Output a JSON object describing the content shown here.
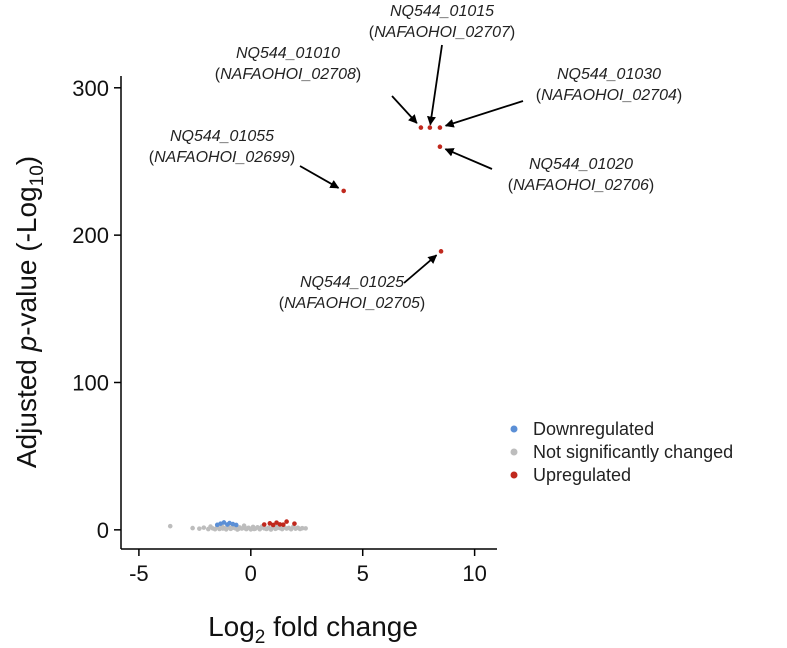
{
  "chart_data": {
    "type": "scatter",
    "title": "",
    "xlabel_base": "Log",
    "xlabel_sub": "2",
    "xlabel_rest": " fold change",
    "ylabel_pre": "Adjusted ",
    "ylabel_italic": "p",
    "ylabel_mid": "-value (-Log",
    "ylabel_sub": "10",
    "ylabel_post": ")",
    "xlim": [
      -5.8,
      11.0
    ],
    "ylim": [
      -13,
      308
    ],
    "x_ticks": [
      {
        "value": -5,
        "label": "-5"
      },
      {
        "value": 0,
        "label": "0"
      },
      {
        "value": 5,
        "label": "5"
      },
      {
        "value": 10,
        "label": "10"
      }
    ],
    "y_ticks": [
      {
        "value": 0,
        "label": "0"
      },
      {
        "value": 100,
        "label": "100"
      },
      {
        "value": 200,
        "label": "200"
      },
      {
        "value": 300,
        "label": "300"
      }
    ],
    "colors": {
      "Downregulated": "#5b8fd6",
      "Not significantly changed": "#bdbdbd",
      "Upregulated": "#c0281d"
    },
    "legend": {
      "position": "right",
      "items": [
        "Downregulated",
        "Not significantly changed",
        "Upregulated"
      ]
    },
    "series": [
      {
        "name": "Not significantly changed",
        "points": [
          [
            -3.6,
            2.5
          ],
          [
            -2.6,
            1.2
          ],
          [
            -2.3,
            0.8
          ],
          [
            -2.1,
            1.5
          ],
          [
            -1.9,
            0.5
          ],
          [
            -1.8,
            2.2
          ],
          [
            -1.7,
            1.0
          ],
          [
            -1.6,
            0.4
          ],
          [
            -1.5,
            1.8
          ],
          [
            -1.4,
            0.6
          ],
          [
            -1.3,
            2.6
          ],
          [
            -1.2,
            1.3
          ],
          [
            -1.1,
            0.3
          ],
          [
            -1.0,
            1.9
          ],
          [
            -0.9,
            0.7
          ],
          [
            -0.8,
            2.4
          ],
          [
            -0.7,
            1.1
          ],
          [
            -0.6,
            0.2
          ],
          [
            -0.5,
            1.6
          ],
          [
            -0.4,
            0.9
          ],
          [
            -0.3,
            2.8
          ],
          [
            -0.2,
            0.5
          ],
          [
            -0.1,
            1.4
          ],
          [
            0.0,
            0.3
          ],
          [
            0.1,
            2.0
          ],
          [
            0.2,
            0.8
          ],
          [
            0.3,
            1.7
          ],
          [
            0.4,
            0.4
          ],
          [
            0.5,
            2.3
          ],
          [
            0.6,
            1.0
          ],
          [
            0.7,
            0.6
          ],
          [
            0.8,
            1.5
          ],
          [
            0.9,
            0.2
          ],
          [
            1.0,
            1.9
          ],
          [
            1.1,
            0.7
          ],
          [
            1.2,
            2.5
          ],
          [
            1.3,
            1.2
          ],
          [
            1.4,
            0.5
          ],
          [
            1.5,
            1.6
          ],
          [
            1.6,
            0.9
          ],
          [
            1.7,
            1.3
          ],
          [
            1.8,
            0.4
          ],
          [
            1.9,
            2.1
          ],
          [
            2.0,
            0.8
          ],
          [
            2.1,
            1.4
          ],
          [
            2.2,
            0.6
          ],
          [
            2.3,
            1.1
          ],
          [
            2.45,
            1.0
          ],
          [
            -0.25,
            1.1
          ],
          [
            0.15,
            0.6
          ],
          [
            0.45,
            1.3
          ],
          [
            -0.55,
            0.7
          ],
          [
            0.75,
            1.0
          ],
          [
            -0.85,
            1.2
          ],
          [
            1.15,
            1.1
          ],
          [
            -1.25,
            0.9
          ]
        ]
      },
      {
        "name": "Downregulated",
        "points": [
          [
            -1.35,
            4.2
          ],
          [
            -1.2,
            5.0
          ],
          [
            -1.05,
            3.6
          ],
          [
            -0.95,
            4.6
          ],
          [
            -0.8,
            3.9
          ],
          [
            -0.65,
            3.3
          ],
          [
            -1.5,
            3.4
          ]
        ]
      },
      {
        "name": "Upregulated",
        "points": [
          [
            0.6,
            3.6
          ],
          [
            0.85,
            4.4
          ],
          [
            1.0,
            3.3
          ],
          [
            1.15,
            4.9
          ],
          [
            1.3,
            3.7
          ],
          [
            1.45,
            3.5
          ],
          [
            1.6,
            5.6
          ],
          [
            1.95,
            4.2
          ],
          [
            7.6,
            273
          ],
          [
            8.0,
            273
          ],
          [
            8.45,
            273
          ],
          [
            8.45,
            260
          ],
          [
            4.15,
            230
          ],
          [
            8.5,
            189
          ]
        ]
      }
    ],
    "annotations": [
      {
        "line1": "NQ544_01015",
        "line2": "(NAFAOHOI_02707)",
        "target": [
          8.0,
          273
        ]
      },
      {
        "line1": "NQ544_01010",
        "line2": "(NAFAOHOI_02708)",
        "target": [
          7.6,
          273
        ]
      },
      {
        "line1": "NQ544_01030",
        "line2": "(NAFAOHOI_02704)",
        "target": [
          8.45,
          273
        ]
      },
      {
        "line1": "NQ544_01055",
        "line2": "(NAFAOHOI_02699)",
        "target": [
          4.15,
          230
        ]
      },
      {
        "line1": "NQ544_01020",
        "line2": "(NAFAOHOI_02706)",
        "target": [
          8.45,
          260
        ]
      },
      {
        "line1": "NQ544_01025",
        "line2": "(NAFAOHOI_02705)",
        "target": [
          8.5,
          189
        ]
      }
    ]
  }
}
